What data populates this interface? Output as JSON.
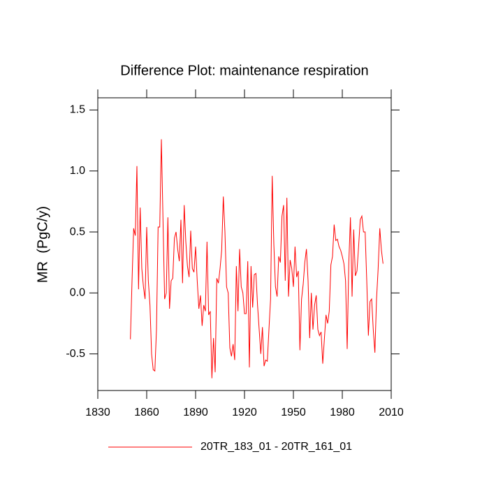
{
  "chart_data": {
    "type": "line",
    "title": "Difference Plot: maintenance respiration",
    "y_label": "MR  (PgC/y)",
    "x": [
      1850,
      1851,
      1852,
      1853,
      1854,
      1855,
      1856,
      1857,
      1858,
      1859,
      1860,
      1861,
      1862,
      1863,
      1864,
      1865,
      1866,
      1867,
      1868,
      1869,
      1870,
      1871,
      1872,
      1873,
      1874,
      1875,
      1876,
      1877,
      1878,
      1879,
      1880,
      1881,
      1882,
      1883,
      1884,
      1885,
      1886,
      1887,
      1888,
      1889,
      1890,
      1891,
      1892,
      1893,
      1894,
      1895,
      1896,
      1897,
      1898,
      1899,
      1900,
      1901,
      1902,
      1903,
      1904,
      1905,
      1906,
      1907,
      1908,
      1909,
      1910,
      1911,
      1912,
      1913,
      1914,
      1915,
      1916,
      1917,
      1918,
      1919,
      1920,
      1921,
      1922,
      1923,
      1924,
      1925,
      1926,
      1927,
      1928,
      1929,
      1930,
      1931,
      1932,
      1933,
      1934,
      1935,
      1936,
      1937,
      1938,
      1939,
      1940,
      1941,
      1942,
      1943,
      1944,
      1945,
      1946,
      1947,
      1948,
      1949,
      1950,
      1951,
      1952,
      1953,
      1954,
      1955,
      1956,
      1957,
      1958,
      1959,
      1960,
      1961,
      1962,
      1963,
      1964,
      1965,
      1966,
      1967,
      1968,
      1969,
      1970,
      1971,
      1972,
      1973,
      1974,
      1975,
      1976,
      1977,
      1978,
      1979,
      1980,
      1981,
      1982,
      1983,
      1984,
      1985,
      1986,
      1987,
      1988,
      1989,
      1990,
      1991,
      1992,
      1993,
      1994,
      1995,
      1996,
      1997,
      1998,
      1999,
      2000,
      2001,
      2002,
      2003,
      2004,
      2005
    ],
    "series": [
      {
        "name": "20TR_183_01 - 20TR_161_01",
        "color": "#ff0000",
        "values": [
          -0.38,
          0.1,
          0.53,
          0.47,
          1.04,
          0.03,
          0.7,
          0.2,
          0.05,
          -0.05,
          0.54,
          0.1,
          -0.1,
          -0.5,
          -0.63,
          -0.64,
          -0.3,
          0.54,
          0.54,
          1.26,
          0.6,
          -0.05,
          0.0,
          0.62,
          -0.13,
          0.1,
          0.12,
          0.45,
          0.5,
          0.36,
          0.26,
          0.6,
          0.08,
          0.72,
          0.42,
          0.22,
          0.13,
          0.51,
          0.2,
          0.17,
          0.38,
          0.1,
          -0.13,
          -0.02,
          -0.27,
          -0.1,
          -0.15,
          0.42,
          -0.18,
          -0.15,
          -0.7,
          -0.37,
          -0.65,
          0.12,
          0.08,
          0.2,
          0.35,
          0.79,
          0.5,
          0.05,
          0.0,
          -0.45,
          -0.52,
          -0.42,
          -0.55,
          0.22,
          -0.15,
          0.36,
          0.05,
          0.0,
          -0.17,
          -0.17,
          0.26,
          -0.61,
          0.22,
          -0.12,
          0.15,
          0.16,
          -0.1,
          -0.3,
          -0.5,
          -0.28,
          -0.6,
          -0.55,
          -0.56,
          -0.3,
          -0.05,
          0.96,
          0.4,
          0.05,
          -0.03,
          0.3,
          0.25,
          0.63,
          0.72,
          0.1,
          0.78,
          -0.03,
          0.27,
          0.2,
          0.05,
          0.38,
          0.13,
          0.18,
          -0.47,
          -0.05,
          0.07,
          0.25,
          0.36,
          0.1,
          -0.37,
          0.0,
          -0.3,
          -0.1,
          -0.02,
          -0.3,
          -0.35,
          -0.32,
          -0.58,
          -0.38,
          -0.18,
          -0.25,
          -0.15,
          0.23,
          0.3,
          0.56,
          0.43,
          0.44,
          0.38,
          0.35,
          0.3,
          0.24,
          0.1,
          -0.46,
          0.25,
          0.62,
          -0.03,
          0.52,
          0.14,
          0.18,
          0.38,
          0.6,
          0.63,
          0.5,
          0.5,
          0.1,
          -0.35,
          -0.07,
          -0.05,
          -0.3,
          -0.49,
          -0.05,
          0.2,
          0.53,
          0.35,
          0.24
        ]
      }
    ],
    "xlim": [
      1830,
      2010
    ],
    "xticks": [
      1830,
      1860,
      1890,
      1920,
      1950,
      1980,
      2010
    ],
    "ylim": [
      -0.8,
      1.6
    ],
    "yticks": [
      -0.5,
      {
        "value": 0,
        "label": "0.0"
      },
      0.5,
      {
        "value": 1,
        "label": "1.0"
      },
      1.5
    ],
    "legend": "bottom"
  }
}
